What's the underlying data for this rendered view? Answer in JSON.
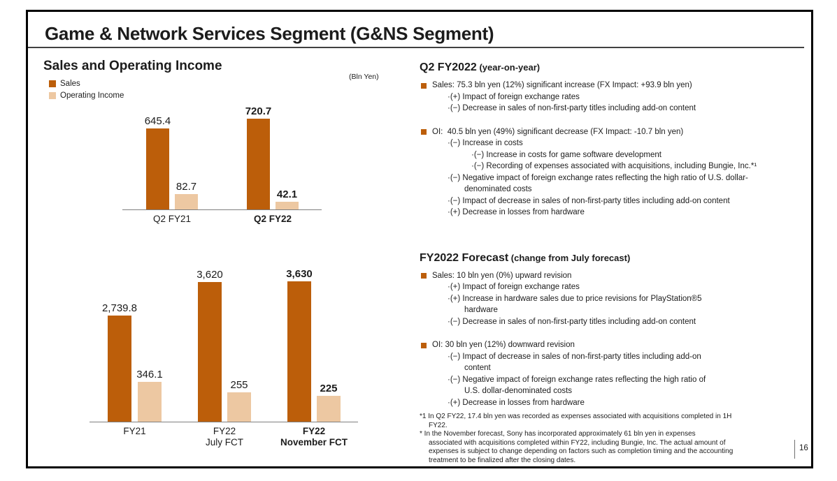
{
  "slide": {
    "title": "Game & Network Services Segment (G&NS Segment)",
    "page_number": "16"
  },
  "left": {
    "heading": "Sales and Operating Income",
    "unit_label": "(Bln Yen)",
    "legend": [
      {
        "label": "Sales",
        "color": "#bc5e0a"
      },
      {
        "label": "Operating Income",
        "color": "#edc8a2"
      }
    ]
  },
  "chart_data": [
    {
      "type": "bar",
      "unit": "Bln Yen",
      "categories": [
        "Q2 FY21",
        "Q2 FY22"
      ],
      "series": [
        {
          "name": "Sales",
          "values": [
            645.4,
            720.7
          ],
          "labels": [
            "645.4",
            "720.7"
          ]
        },
        {
          "name": "Operating Income",
          "values": [
            82.7,
            42.1
          ],
          "labels": [
            "82.7",
            "42.1"
          ]
        }
      ],
      "emphasis_index": 1,
      "grid": false,
      "legend_position": "top-left"
    },
    {
      "type": "bar",
      "unit": "Bln Yen",
      "categories": [
        "FY21",
        "FY22\nJuly FCT",
        "FY22\nNovember FCT"
      ],
      "series": [
        {
          "name": "Sales",
          "values": [
            2739.8,
            3620,
            3630
          ],
          "labels": [
            "2,739.8",
            "3,620",
            "3,630"
          ]
        },
        {
          "name": "Operating Income",
          "values": [
            346.1,
            255,
            225
          ],
          "labels": [
            "346.1",
            "255",
            "225"
          ]
        }
      ],
      "emphasis_index": 2,
      "grid": false,
      "legend_position": "top-left"
    }
  ],
  "right": {
    "bullet_color": "#bc5e0a",
    "sections": [
      {
        "heading": "Q2 FY2022",
        "heading_note": "(year-on-year)",
        "bullets": [
          {
            "text": "Sales: 75.3 bln yen (12%) significant increase (FX Impact: +93.9 bln yen)",
            "subs": [
              {
                "level": 1,
                "text": "·(+) Impact of foreign exchange rates"
              },
              {
                "level": 1,
                "text": "·(−) Decrease in sales of non-first-party titles including add-on content"
              }
            ]
          },
          {
            "text": "OI:  40.5 bln yen (49%) significant decrease (FX Impact: -10.7 bln yen)",
            "subs": [
              {
                "level": 1,
                "text": "·(−) Increase in costs"
              },
              {
                "level": 2,
                "text": "·(−) Increase in costs for game software development"
              },
              {
                "level": 2,
                "text": "·(−) Recording of expenses associated with acquisitions, including Bungie, Inc.*¹"
              },
              {
                "level": 1,
                "text": "·(−) Negative impact of foreign exchange rates reflecting the high ratio of U.S. dollar-\ndenominated costs"
              },
              {
                "level": 1,
                "text": "·(−) Impact of decrease in sales of non-first-party titles including add-on content"
              },
              {
                "level": 1,
                "text": "·(+) Decrease in losses from hardware"
              }
            ]
          }
        ]
      },
      {
        "heading": "FY2022 Forecast",
        "heading_note": "(change from July forecast)",
        "bullets": [
          {
            "text": "Sales: 10 bln yen (0%) upward revision",
            "subs": [
              {
                "level": 1,
                "text": "·(+) Impact of foreign exchange rates"
              },
              {
                "level": 1,
                "text": "·(+) Increase in hardware sales due to price revisions for PlayStation®5\nhardware"
              },
              {
                "level": 1,
                "text": "·(−) Decrease in sales of non-first-party titles including add-on content"
              }
            ]
          },
          {
            "text": "OI: 30 bln yen (12%) downward revision",
            "subs": [
              {
                "level": 1,
                "text": "·(−) Impact of decrease in sales of non-first-party titles including add-on\ncontent"
              },
              {
                "level": 1,
                "text": "·(−) Negative impact of foreign exchange rates reflecting the high ratio of\nU.S. dollar-denominated costs"
              },
              {
                "level": 1,
                "text": "·(+) Decrease in losses from hardware"
              }
            ]
          }
        ]
      }
    ],
    "footnotes": [
      "*1 In Q2 FY22, 17.4 bln yen was recorded as expenses associated with acquisitions completed in 1H\nFY22.",
      "* In the November forecast, Sony has incorporated approximately 61 bln yen in expenses\nassociated with acquisitions completed within FY22, including Bungie, Inc. The actual amount of\nexpenses is subject to change depending on factors such as completion timing and the accounting\ntreatment to be finalized after the closing dates."
    ]
  }
}
